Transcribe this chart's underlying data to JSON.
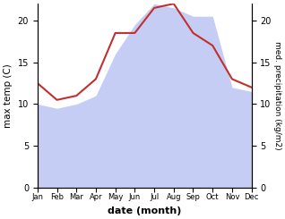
{
  "months": [
    "Jan",
    "Feb",
    "Mar",
    "Apr",
    "May",
    "Jun",
    "Jul",
    "Aug",
    "Sep",
    "Oct",
    "Nov",
    "Dec"
  ],
  "precipitation": [
    10.0,
    9.5,
    10.0,
    11.0,
    16.0,
    19.5,
    22.0,
    21.5,
    20.5,
    20.5,
    12.0,
    11.5
  ],
  "max_temp": [
    12.5,
    10.5,
    11.0,
    13.0,
    18.5,
    18.5,
    21.5,
    22.0,
    18.5,
    17.0,
    13.0,
    12.0
  ],
  "precip_fill_color": "#c5cdf5",
  "temp_color": "#c03030",
  "ylabel_left": "max temp (C)",
  "ylabel_right": "med. precipitation (kg/m2)",
  "xlabel": "date (month)",
  "ylim": [
    0,
    22
  ],
  "yticks": [
    0,
    5,
    10,
    15,
    20
  ],
  "background_color": "#ffffff"
}
